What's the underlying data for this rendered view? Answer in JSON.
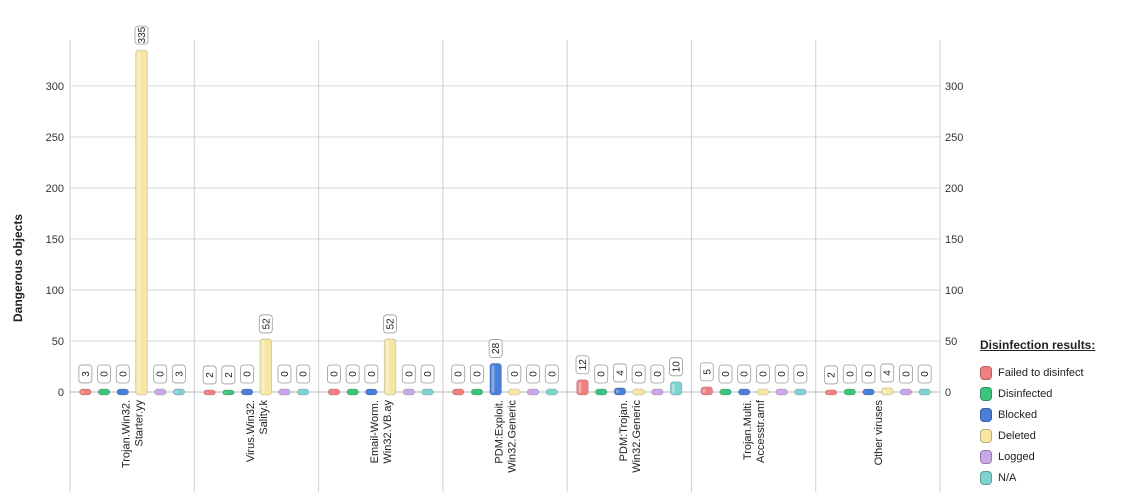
{
  "chart_data": {
    "type": "bar",
    "ylabel": "Dangerous objects",
    "ylim": [
      0,
      340
    ],
    "yticks": [
      0,
      50,
      100,
      150,
      200,
      250,
      300
    ],
    "grid": true,
    "legend_position": "bottom-right",
    "legend_title": "Disinfection results:",
    "categories": [
      [
        "Trojan.Win32.",
        "Starter.yy"
      ],
      [
        "Virus.Win32.",
        "Sality.k"
      ],
      [
        "Email-Worm.",
        "Win32.VB.ay"
      ],
      [
        "PDM:Exploit.",
        "Win32.Generic"
      ],
      [
        "PDM:Trojan.",
        "Win32.Generic"
      ],
      [
        "Trojan.Multi.",
        "Accesstr.amf"
      ],
      [
        "Other viruses"
      ]
    ],
    "series": [
      {
        "name": "Failed to disinfect",
        "color": "#f08080",
        "values": [
          3,
          2,
          0,
          0,
          12,
          5,
          2
        ]
      },
      {
        "name": "Disinfected",
        "color": "#3cc47c",
        "values": [
          0,
          2,
          0,
          0,
          0,
          0,
          0
        ]
      },
      {
        "name": "Blocked",
        "color": "#4a7fd8",
        "values": [
          0,
          0,
          0,
          28,
          4,
          0,
          0
        ]
      },
      {
        "name": "Deleted",
        "color": "#f7e7a4",
        "values": [
          335,
          52,
          52,
          0,
          0,
          0,
          4
        ]
      },
      {
        "name": "Logged",
        "color": "#c9a8e8",
        "values": [
          0,
          0,
          0,
          0,
          0,
          0,
          0
        ]
      },
      {
        "name": "N/A",
        "color": "#7fd3cf",
        "values": [
          3,
          0,
          0,
          0,
          10,
          0,
          0
        ]
      }
    ]
  }
}
